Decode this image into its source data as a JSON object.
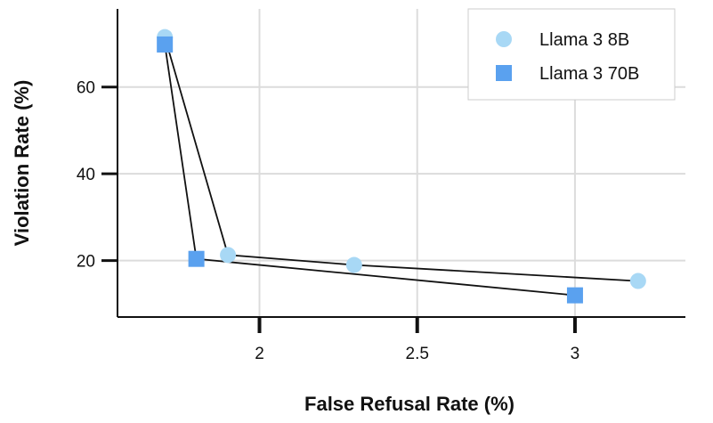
{
  "chart_data": {
    "type": "scatter",
    "title": "",
    "xlabel": "False Refusal Rate (%)",
    "ylabel": "Violation Rate (%)",
    "xlim": [
      1.55,
      3.35
    ],
    "ylim": [
      7,
      78
    ],
    "xticks": [
      2,
      2.5,
      3
    ],
    "xtick_labels": [
      "2",
      "2.5",
      "3"
    ],
    "yticks": [
      20,
      40,
      60
    ],
    "ytick_labels": [
      "20",
      "40",
      "60"
    ],
    "grid": true,
    "legend": "top-right",
    "series": [
      {
        "name": "Llama 3 8B",
        "marker": "circle",
        "color": "#a8d8f5",
        "points": [
          {
            "x": 1.7,
            "y": 71.5
          },
          {
            "x": 1.9,
            "y": 21.3
          },
          {
            "x": 2.3,
            "y": 19.0
          },
          {
            "x": 3.2,
            "y": 15.3
          }
        ],
        "connect_order": [
          0,
          1,
          2,
          3
        ]
      },
      {
        "name": "Llama 3 70B",
        "marker": "square",
        "color": "#5aa1ef",
        "points": [
          {
            "x": 1.7,
            "y": 69.8
          },
          {
            "x": 1.8,
            "y": 20.4
          },
          {
            "x": 3.0,
            "y": 12.0
          }
        ],
        "connect_order": [
          0,
          1,
          2
        ]
      }
    ]
  }
}
